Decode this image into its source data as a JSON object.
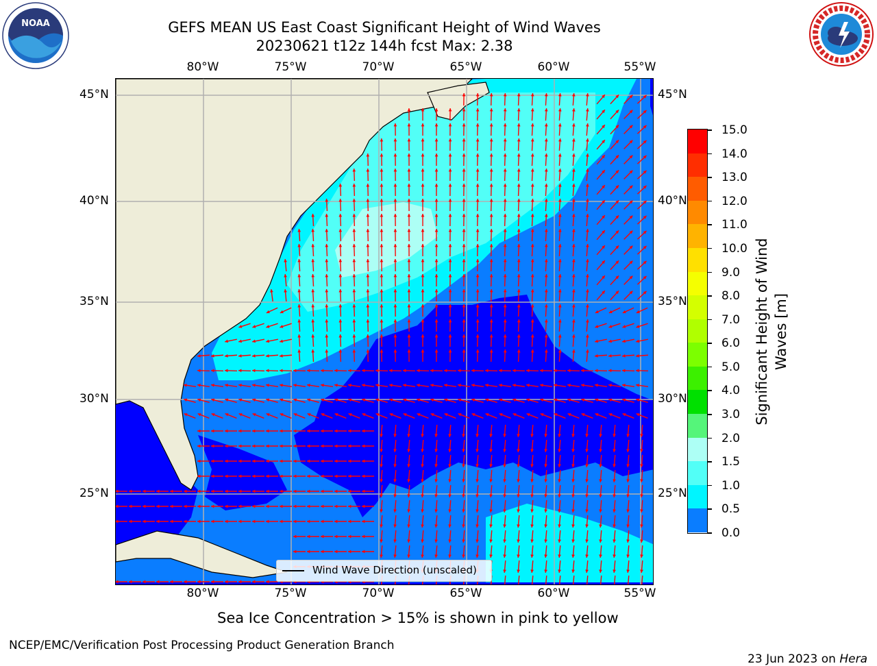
{
  "title": {
    "line1": "GEFS MEAN US East Coast Significant Height of Wind Waves",
    "line2": "20230621 t12z 144h fcst   Max: 2.38"
  },
  "map": {
    "lon_labels": [
      "80°W",
      "75°W",
      "70°W",
      "65°W",
      "60°W",
      "55°W"
    ],
    "lat_labels": [
      "45°N",
      "40°N",
      "35°N",
      "30°N",
      "25°N"
    ],
    "legend_text": "Wind Wave Direction (unscaled)",
    "colors": {
      "land": "#eeedd9",
      "band_0": "#0000ff",
      "band_05": "#0a7dff",
      "band_10": "#00f5ff",
      "band_15": "#52fff7",
      "band_20": "#adfff5",
      "arrow": "#ff0000",
      "grid": "#b0b0b0"
    }
  },
  "colorbar": {
    "label": "Significant Height of Wind Waves [m]",
    "label_line1": "Significant Height of Wind",
    "label_line2": "Waves [m]",
    "ticks": [
      "15.0",
      "14.0",
      "13.0",
      "12.0",
      "11.0",
      "10.0",
      "9.0",
      "8.0",
      "7.0",
      "6.0",
      "5.0",
      "4.0",
      "3.0",
      "2.0",
      "1.5",
      "1.0",
      "0.5",
      "0.0"
    ],
    "colors": [
      "#ff0000",
      "#ff2e00",
      "#ff5c00",
      "#ff8a00",
      "#ffb300",
      "#ffe000",
      "#f5ff00",
      "#d4ff00",
      "#b0ff00",
      "#7cff00",
      "#3cf000",
      "#00e000",
      "#55f57a",
      "#adfff5",
      "#52fff7",
      "#00f5ff",
      "#0a7dff",
      "#0000ff"
    ]
  },
  "subtitle": "Sea Ice Concentration > 15% is shown in pink to yellow",
  "footer": {
    "left": "NCEP/EMC/Verification Post Processing Product Generation Branch",
    "right_date": "23 Jun 2023 on ",
    "right_host": "Hera"
  },
  "logos": {
    "noaa_text": "NOAA",
    "nws_text": "NATIONAL WEATHER SERVICE"
  }
}
